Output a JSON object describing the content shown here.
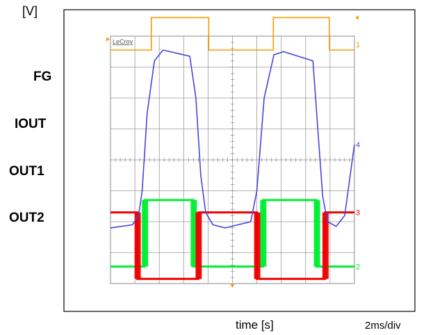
{
  "ylabel": "[V]",
  "xlabel": "time [s]",
  "timebase": "2ms/div",
  "brand": "LeCroy",
  "trace_labels": [
    "FG",
    "IOUT",
    "OUT1",
    "OUT2"
  ],
  "chart_data": {
    "type": "line",
    "title": "",
    "xlabel": "time [s]",
    "ylabel": "[V]",
    "timebase": "2ms/div",
    "x_unit": "ms",
    "xlim": [
      0,
      20
    ],
    "ylim": [
      0,
      8
    ],
    "grid": true,
    "grid_divisions": {
      "x": 10,
      "y": 8
    },
    "series": [
      {
        "name": "FG",
        "channel_marker": "1",
        "color": "#ff9900",
        "x": [
          0,
          3.35,
          3.35,
          8.05,
          8.05,
          13.35,
          13.35,
          17.95,
          17.95,
          20
        ],
        "y": [
          7.55,
          7.55,
          8.6,
          8.6,
          7.55,
          7.55,
          8.6,
          8.6,
          7.55,
          7.55
        ]
      },
      {
        "name": "IOUT",
        "channel_marker": "4",
        "color": "#4444dd",
        "x": [
          0,
          1.8,
          2.3,
          2.6,
          3.0,
          3.6,
          4.3,
          6.5,
          7.0,
          7.4,
          7.8,
          8.4,
          9.4,
          11.5,
          12.0,
          12.6,
          13.4,
          14.2,
          16.6,
          17.0,
          17.4,
          17.8,
          18.5,
          19.2,
          20
        ],
        "y": [
          1.8,
          1.9,
          2.2,
          3.0,
          5.5,
          7.2,
          7.55,
          7.35,
          6.0,
          3.5,
          2.3,
          1.9,
          1.8,
          2.0,
          3.0,
          6.0,
          7.4,
          7.5,
          7.2,
          5.0,
          2.8,
          2.0,
          1.85,
          2.2,
          4.5
        ]
      },
      {
        "name": "OUT1",
        "channel_marker": "2",
        "color": "#00ee33",
        "x": [
          0,
          2.8,
          2.8,
          6.8,
          6.8,
          12.5,
          12.5,
          16.9,
          16.9,
          20
        ],
        "y": [
          0.55,
          0.55,
          2.7,
          2.7,
          0.55,
          0.55,
          2.7,
          2.7,
          0.55,
          0.55
        ]
      },
      {
        "name": "OUT2",
        "channel_marker": "3",
        "color": "#ee0000",
        "x": [
          0,
          2.2,
          2.2,
          7.2,
          7.2,
          12.0,
          12.0,
          17.6,
          17.6,
          20
        ],
        "y": [
          2.3,
          2.3,
          0.15,
          0.15,
          2.3,
          2.3,
          0.15,
          0.15,
          2.3,
          2.3
        ]
      }
    ]
  }
}
